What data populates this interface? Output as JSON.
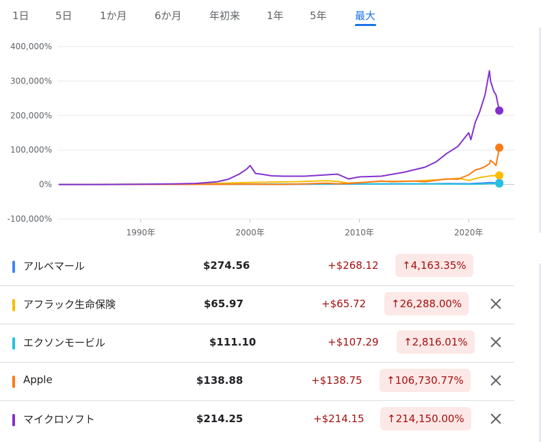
{
  "range_tabs": [
    {
      "label": "1日",
      "selected": false
    },
    {
      "label": "5日",
      "selected": false
    },
    {
      "label": "1か月",
      "selected": false
    },
    {
      "label": "6か月",
      "selected": false
    },
    {
      "label": "年初来",
      "selected": false
    },
    {
      "label": "1年",
      "selected": false
    },
    {
      "label": "5年",
      "selected": false
    },
    {
      "label": "最大",
      "selected": true
    }
  ],
  "accent_color": "#1a73e8",
  "chart_data": {
    "type": "line",
    "y_unit": "%",
    "ylim": [
      -100000,
      400000
    ],
    "yticks": [
      -100000,
      0,
      100000,
      200000,
      300000,
      400000
    ],
    "ytick_labels": [
      "-100,000%",
      "0%",
      "100,000%",
      "200,000%",
      "300,000%",
      "400,000%"
    ],
    "xlim": [
      1982.5,
      2022.8
    ],
    "xticks": [
      1990,
      2000,
      2010,
      2020
    ],
    "xtick_labels": [
      "1990年",
      "2000年",
      "2010年",
      "2020年"
    ],
    "grid": true,
    "series": [
      {
        "name": "アルベマール",
        "color": "#4285f4",
        "x": [
          1982.5,
          1995,
          2000,
          2005,
          2010,
          2015,
          2018,
          2020,
          2021,
          2022,
          2022.8
        ],
        "y": [
          0,
          200,
          500,
          800,
          1200,
          1800,
          2500,
          2200,
          3500,
          5500,
          4163
        ]
      },
      {
        "name": "アフラック生命保険",
        "color": "#fbbc04",
        "x": [
          1982.5,
          1990,
          1995,
          1998,
          2000,
          2002,
          2004,
          2007,
          2008,
          2009,
          2012,
          2015,
          2018,
          2019,
          2020,
          2021,
          2022,
          2022.8
        ],
        "y": [
          0,
          500,
          1500,
          4000,
          6000,
          7000,
          8000,
          11000,
          9000,
          4000,
          9000,
          10000,
          15000,
          18000,
          12000,
          20000,
          25000,
          26288
        ]
      },
      {
        "name": "エクソンモービル",
        "color": "#24c1e0",
        "x": [
          1982.5,
          1990,
          2000,
          2005,
          2008,
          2010,
          2014,
          2016,
          2020,
          2021,
          2022,
          2022.8
        ],
        "y": [
          0,
          200,
          700,
          1300,
          1900,
          1500,
          2100,
          1900,
          700,
          1200,
          2600,
          2816
        ]
      },
      {
        "name": "Apple",
        "color": "#fa7b17",
        "x": [
          1982.5,
          1990,
          1995,
          1997,
          2000,
          2001,
          2003,
          2005,
          2007,
          2008,
          2009,
          2010,
          2012,
          2013,
          2015,
          2016,
          2017,
          2018,
          2019,
          2020,
          2020.6,
          2021,
          2021.5,
          2021.9,
          2022,
          2022.3,
          2022.5,
          2022.8
        ],
        "y": [
          0,
          100,
          200,
          100,
          1000,
          300,
          200,
          1500,
          3500,
          2000,
          3000,
          5000,
          10000,
          8000,
          10000,
          8000,
          12000,
          16000,
          15000,
          28000,
          42000,
          45000,
          52000,
          60000,
          70000,
          62000,
          55000,
          106730
        ]
      },
      {
        "name": "マイクロソフト",
        "color": "#8430ce",
        "x": [
          1982.5,
          1986,
          1990,
          1993,
          1995,
          1997,
          1998,
          1999,
          1999.7,
          2000,
          2000.5,
          2001,
          2002,
          2003,
          2005,
          2007,
          2008,
          2009,
          2010,
          2012,
          2014,
          2016,
          2017,
          2018,
          2019,
          2020,
          2020.2,
          2020.6,
          2021,
          2021.5,
          2021.9,
          2022,
          2022.3,
          2022.5,
          2022.8
        ],
        "y": [
          0,
          0,
          500,
          1500,
          3000,
          8000,
          15000,
          30000,
          45000,
          55000,
          32000,
          30000,
          25000,
          24000,
          24000,
          28000,
          30000,
          16000,
          22000,
          24000,
          35000,
          50000,
          65000,
          90000,
          110000,
          150000,
          130000,
          180000,
          210000,
          260000,
          330000,
          300000,
          270000,
          260000,
          214150
        ]
      }
    ]
  },
  "rows": [
    {
      "name": "アルベマール",
      "price": "$274.56",
      "change": "+$268.12",
      "pct_arrow": "↑",
      "pct": "4,163.35%",
      "color": "#4285f4",
      "has_remove": false
    },
    {
      "name": "アフラック生命保険",
      "price": "$65.97",
      "change": "+$65.72",
      "pct_arrow": "↑",
      "pct": "26,288.00%",
      "color": "#fbbc04",
      "has_remove": true
    },
    {
      "name": "エクソンモービル",
      "price": "$111.10",
      "change": "+$107.29",
      "pct_arrow": "↑",
      "pct": "2,816.01%",
      "color": "#24c1e0",
      "has_remove": true
    },
    {
      "name": "Apple",
      "price": "$138.88",
      "change": "+$138.75",
      "pct_arrow": "↑",
      "pct": "106,730.77%",
      "color": "#fa7b17",
      "has_remove": true
    },
    {
      "name": "マイクロソフト",
      "price": "$214.25",
      "change": "+$214.15",
      "pct_arrow": "↑",
      "pct": "214,150.00%",
      "color": "#8430ce",
      "has_remove": true
    }
  ],
  "icons": {
    "remove": "close-icon",
    "percent_up": "arrow-up-icon"
  }
}
